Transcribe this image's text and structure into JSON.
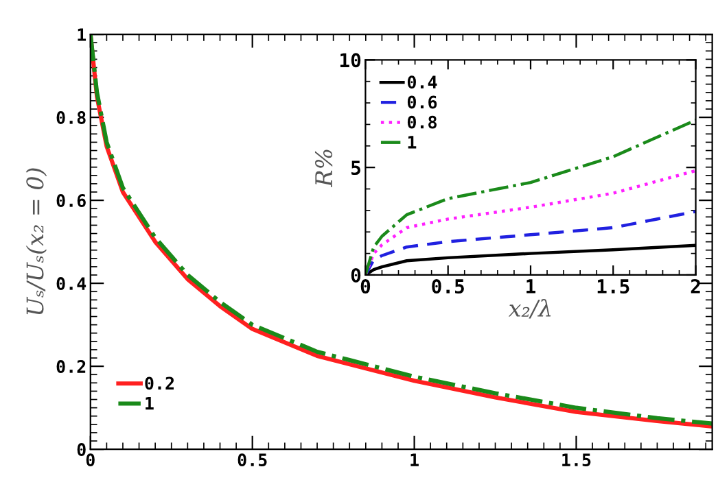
{
  "chart_data": [
    {
      "type": "line",
      "ylabel": "Uₛ/Uₛ(x₂ = 0)",
      "xlim": [
        0,
        1.92
      ],
      "ylim": [
        0,
        1
      ],
      "xticks": [
        0,
        0.5,
        1,
        1.5
      ],
      "yticks": [
        0,
        0.2,
        0.4,
        0.6,
        0.8,
        1
      ],
      "legend": "bottom left",
      "grid": false,
      "series": [
        {
          "name": "0.2",
          "color": "#ff2020",
          "line_style": "solid",
          "x": [
            0,
            0.02,
            0.05,
            0.1,
            0.2,
            0.3,
            0.4,
            0.5,
            0.7,
            1.0,
            1.25,
            1.5,
            1.75,
            1.92
          ],
          "values": [
            1,
            0.85,
            0.73,
            0.62,
            0.5,
            0.41,
            0.345,
            0.29,
            0.225,
            0.165,
            0.125,
            0.09,
            0.068,
            0.055
          ]
        },
        {
          "name": "1",
          "color": "#1a8a1a",
          "line_style": "dashdot",
          "x": [
            0,
            0.02,
            0.05,
            0.1,
            0.2,
            0.3,
            0.4,
            0.5,
            0.7,
            1.0,
            1.25,
            1.5,
            1.75,
            1.92
          ],
          "values": [
            1,
            0.86,
            0.74,
            0.63,
            0.51,
            0.42,
            0.355,
            0.3,
            0.235,
            0.175,
            0.135,
            0.1,
            0.075,
            0.062
          ]
        }
      ]
    },
    {
      "type": "line",
      "xlabel": "x₂/λ",
      "ylabel": "R%",
      "xlim": [
        0,
        2
      ],
      "ylim": [
        0,
        10
      ],
      "xticks": [
        0,
        0.5,
        1,
        1.5,
        2
      ],
      "yticks": [
        0,
        5,
        10
      ],
      "legend": "top left",
      "grid": false,
      "series": [
        {
          "name": "0.4",
          "color": "#000000",
          "line_style": "solid",
          "x": [
            0,
            0.05,
            0.1,
            0.25,
            0.5,
            1,
            1.5,
            2
          ],
          "values": [
            0,
            0.25,
            0.38,
            0.66,
            0.8,
            1.0,
            1.17,
            1.38
          ]
        },
        {
          "name": "0.6",
          "color": "#2020e0",
          "line_style": "dashed",
          "x": [
            0,
            0.05,
            0.1,
            0.25,
            0.5,
            1,
            1.5,
            2
          ],
          "values": [
            0,
            0.7,
            0.9,
            1.3,
            1.55,
            1.87,
            2.2,
            2.95
          ]
        },
        {
          "name": "0.8",
          "color": "#ff20ff",
          "line_style": "dotted",
          "x": [
            0,
            0.05,
            0.1,
            0.25,
            0.5,
            1,
            1.5,
            2
          ],
          "values": [
            0,
            1.0,
            1.4,
            2.2,
            2.6,
            3.15,
            3.8,
            4.85
          ]
        },
        {
          "name": "1",
          "color": "#1a8a1a",
          "line_style": "dashdot",
          "x": [
            0,
            0.05,
            0.1,
            0.25,
            0.5,
            1,
            1.5,
            2
          ],
          "values": [
            0,
            1.3,
            1.8,
            2.8,
            3.55,
            4.3,
            5.5,
            7.2
          ]
        }
      ]
    }
  ]
}
